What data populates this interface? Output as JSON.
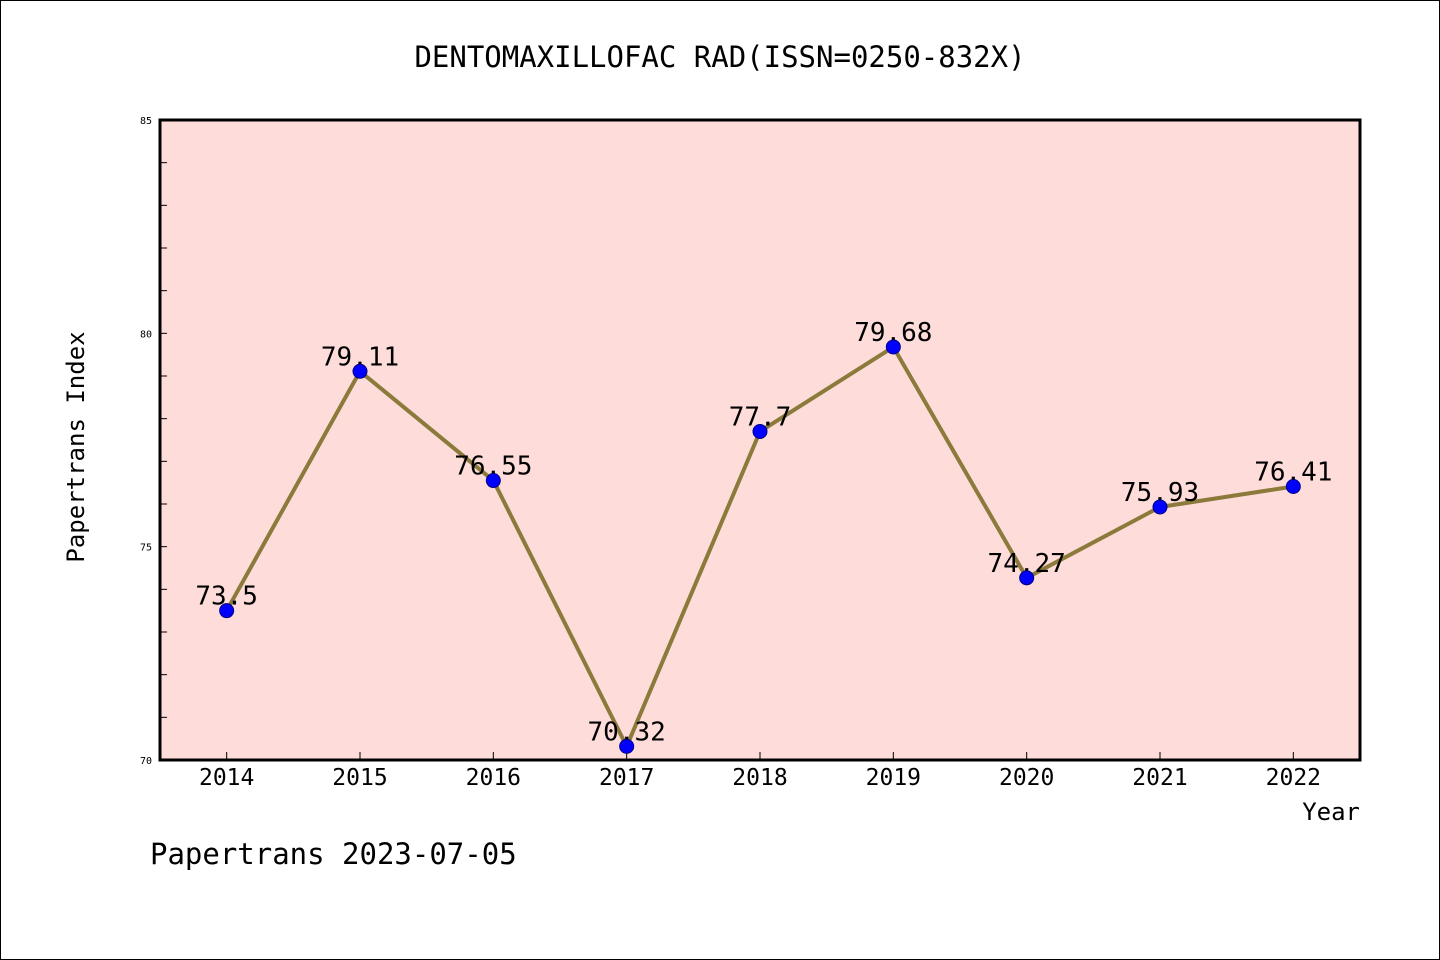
{
  "footer": "Papertrans 2023-07-05",
  "colors": {
    "figure_background": "#FFFFFF",
    "plot_background": "#FDDCDA",
    "line": "#8B7A3A",
    "marker": "#0000FF",
    "marker_edge": "#000080"
  },
  "chart_data": {
    "type": "line",
    "title": "DENTOMAXILLOFAC RAD(ISSN=0250-832X)",
    "xlabel": "Year",
    "ylabel": "Papertrans Index",
    "x": [
      2014,
      2015,
      2016,
      2017,
      2018,
      2019,
      2020,
      2021,
      2022
    ],
    "series": [
      {
        "values": [
          73.5,
          79.11,
          76.55,
          70.32,
          77.7,
          79.68,
          74.27,
          75.93,
          76.41
        ]
      }
    ],
    "xlim": [
      2013.5,
      2022.5
    ],
    "ylim": [
      70,
      85
    ],
    "yticks": [
      70,
      75,
      80,
      85
    ],
    "grid": false,
    "data_labels": true
  }
}
